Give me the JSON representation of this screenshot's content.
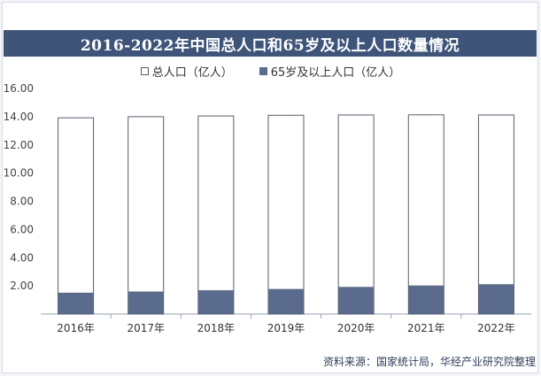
{
  "chart_data": {
    "type": "bar",
    "title": "2016-2022年中国总人口和65岁及以上人口数量情况",
    "categories": [
      "2016年",
      "2017年",
      "2018年",
      "2019年",
      "2020年",
      "2021年",
      "2022年"
    ],
    "series": [
      {
        "name": "总人口（亿人）",
        "values": [
          13.92,
          14.0,
          14.05,
          14.1,
          14.12,
          14.13,
          14.12
        ]
      },
      {
        "name": "65岁及以上人口（亿人）",
        "values": [
          1.5,
          1.58,
          1.67,
          1.76,
          1.91,
          2.01,
          2.1
        ]
      }
    ],
    "y_ticks": [
      "",
      "2.00",
      "4.00",
      "6.00",
      "8.00",
      "10.00",
      "12.00",
      "14.00",
      "16.00"
    ],
    "ylim": [
      0,
      16
    ],
    "colors": {
      "total": "#ffffff",
      "aged": "#5b6b8e",
      "outline": "#555e6e",
      "title_bg": "#3e5479"
    }
  },
  "footer": "资料来源：国家统计局，华经产业研究院整理"
}
